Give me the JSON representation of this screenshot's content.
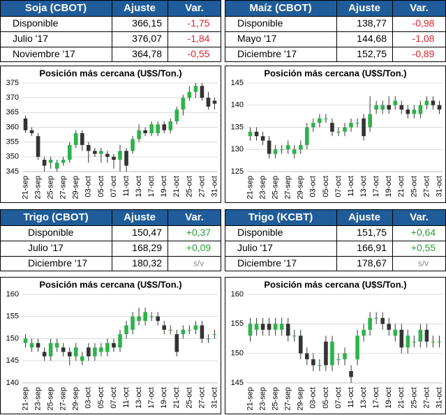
{
  "tables": [
    {
      "header": [
        "Soja (CBOT)",
        "Ajuste",
        "Var."
      ],
      "rows": [
        [
          "Disponible",
          "366,15",
          "-1,75"
        ],
        [
          "Julio '17",
          "376,07",
          "-1,84"
        ],
        [
          "Noviembre '17",
          "364,78",
          "-0,55"
        ]
      ]
    },
    {
      "header": [
        "Maíz (CBOT)",
        "Ajuste",
        "Var."
      ],
      "rows": [
        [
          "Disponible",
          "138,77",
          "-0,98"
        ],
        [
          "Mayo '17",
          "144,68",
          "-1,08"
        ],
        [
          "Diciembre '17",
          "152,75",
          "-0,89"
        ]
      ]
    },
    {
      "header": [
        "Trigo (CBOT)",
        "Ajuste",
        "Var."
      ],
      "rows": [
        [
          "Disponible",
          "150,47",
          "+0,37"
        ],
        [
          "Julio '17",
          "168,29",
          "+0,09"
        ],
        [
          "Diciembre '17",
          "180,32",
          "s/v"
        ]
      ]
    },
    {
      "header": [
        "Trigo (KCBT)",
        "Ajuste",
        "Var."
      ],
      "rows": [
        [
          "Disponible",
          "151,75",
          "+0,64"
        ],
        [
          "Julio '17",
          "166,91",
          "+0,55"
        ],
        [
          "Diciembre '17",
          "178,67",
          "s/v"
        ]
      ]
    }
  ],
  "chart_data": [
    {
      "type": "candlestick",
      "title": "Posición más cercana (U$S/Ton.)",
      "up_color": "#2db34a",
      "down_color": "#333333",
      "grid": true,
      "categories": [
        "21-sep",
        null,
        "23-sep",
        null,
        "25-sep",
        null,
        "27-sep",
        null,
        "29-sep",
        null,
        "03-oct",
        null,
        "05-oct",
        null,
        "07-oct",
        null,
        "11-oct",
        null,
        "13-oct",
        null,
        "17-oct",
        null,
        "19-oct",
        null,
        "21-oct",
        null,
        "25-oct",
        null,
        "27-oct",
        null,
        "31-oct"
      ],
      "open": [
        363,
        359,
        357,
        349,
        348,
        346,
        348,
        349,
        354,
        358,
        354,
        352,
        351,
        351,
        350,
        349,
        352,
        352,
        356,
        359,
        358,
        358,
        361,
        359,
        362,
        366,
        370,
        372,
        374,
        370,
        369
      ],
      "high": [
        364,
        360,
        358,
        350,
        350,
        349,
        350,
        355,
        359,
        359,
        355,
        353,
        353,
        352,
        351,
        354,
        353,
        357,
        361,
        360,
        362,
        362,
        362,
        363,
        367,
        371,
        374,
        375,
        375,
        372,
        370
      ],
      "low": [
        358,
        357,
        349,
        345,
        346,
        345,
        347,
        348,
        353,
        352,
        348,
        350,
        348,
        348,
        346,
        345,
        345,
        351,
        355,
        357,
        357,
        357,
        358,
        358,
        361,
        364,
        369,
        370,
        369,
        366,
        366
      ],
      "close": [
        359,
        358,
        350,
        347,
        349,
        348,
        349,
        354,
        358,
        354,
        352,
        351,
        352,
        350,
        349,
        352,
        347,
        356,
        359,
        358,
        361,
        361,
        359,
        362,
        366,
        370,
        372,
        374,
        370,
        367,
        368
      ],
      "ylim": [
        345,
        375
      ],
      "yticks": [
        345,
        350,
        355,
        360,
        365,
        370,
        375
      ]
    },
    {
      "type": "candlestick",
      "title": "Posición más cercana (U$S/Ton.)",
      "up_color": "#2db34a",
      "down_color": "#333333",
      "grid": true,
      "categories": [
        "21-sep",
        null,
        "23-sep",
        null,
        "25-sep",
        null,
        "27-sep",
        null,
        "29-sep",
        null,
        "03-oct",
        null,
        "05-oct",
        null,
        "07-oct",
        null,
        "11-oct",
        null,
        "13-oct",
        null,
        "17-oct",
        null,
        "19-oct",
        null,
        "21-oct",
        null,
        "25-oct",
        null,
        "27-oct",
        null,
        "31-oct"
      ],
      "open": [
        133,
        134,
        133,
        132,
        129,
        130,
        130,
        129,
        130,
        131,
        135,
        136,
        137,
        136,
        134,
        134,
        135,
        136,
        137,
        135,
        139,
        139,
        140,
        140,
        140,
        139,
        138,
        138,
        140,
        141,
        140
      ],
      "high": [
        135,
        135,
        134,
        133,
        131,
        131,
        132,
        131,
        132,
        136,
        137,
        138,
        138,
        137,
        135,
        136,
        137,
        137,
        138,
        142,
        141,
        141,
        142,
        142,
        141,
        140,
        140,
        141,
        142,
        142,
        141
      ],
      "low": [
        132,
        132,
        131,
        128,
        128,
        129,
        129,
        128,
        129,
        130,
        134,
        135,
        136,
        133,
        133,
        133,
        134,
        135,
        132,
        134,
        138,
        138,
        138,
        139,
        138,
        137,
        137,
        137,
        139,
        139,
        138
      ],
      "close": [
        134,
        133,
        132,
        129,
        130,
        130,
        131,
        130,
        131,
        135,
        136,
        137,
        137,
        134,
        134,
        135,
        136,
        136,
        133,
        138,
        140,
        140,
        139,
        141,
        139,
        138,
        139,
        140,
        141,
        140,
        139
      ],
      "ylim": [
        125,
        145
      ],
      "yticks": [
        125,
        130,
        135,
        140,
        145
      ]
    },
    {
      "type": "candlestick",
      "title": "Posición más cercana (U$S/Ton.)",
      "up_color": "#2db34a",
      "down_color": "#333333",
      "grid": true,
      "categories": [
        "21-sep",
        null,
        "23-sep",
        null,
        "25-sep",
        null,
        "27-sep",
        null,
        "29-sep",
        null,
        "03-oct",
        null,
        "05-oct",
        null,
        "07-oct",
        null,
        "11-oct",
        null,
        "13-oct",
        null,
        "17-oct",
        null,
        "19-oct",
        null,
        "21-oct",
        null,
        "25-oct",
        null,
        "27-oct",
        null,
        "31-oct"
      ],
      "open": [
        149,
        148,
        149,
        147,
        146,
        148,
        148,
        147,
        146,
        145,
        148,
        146,
        147,
        147,
        149,
        148,
        151,
        152,
        154,
        154,
        155,
        155,
        153,
        152,
        151,
        151,
        152,
        152,
        153,
        150,
        151
      ],
      "high": [
        151,
        150,
        150,
        148,
        150,
        150,
        149,
        148,
        149,
        147,
        149,
        149,
        149,
        150,
        150,
        152,
        154,
        156,
        157,
        157,
        156,
        156,
        154,
        153,
        152,
        153,
        153,
        154,
        154,
        151,
        152
      ],
      "low": [
        148,
        147,
        147,
        145,
        145,
        147,
        146,
        144,
        145,
        144,
        145,
        145,
        146,
        146,
        147,
        147,
        150,
        151,
        153,
        153,
        154,
        153,
        151,
        151,
        146,
        150,
        151,
        151,
        149,
        149,
        150
      ],
      "close": [
        150,
        149,
        148,
        146,
        149,
        149,
        147,
        146,
        148,
        146,
        146,
        148,
        148,
        149,
        148,
        151,
        153,
        155,
        155,
        156,
        155,
        154,
        152,
        152,
        147,
        152,
        152,
        153,
        150,
        150,
        151
      ],
      "ylim": [
        140,
        160
      ],
      "yticks": [
        140,
        145,
        150,
        155,
        160
      ]
    },
    {
      "type": "candlestick",
      "title": "Posición más cercana (U$S/Ton.)",
      "up_color": "#2db34a",
      "down_color": "#333333",
      "grid": true,
      "categories": [
        "21-sep",
        null,
        "23-sep",
        null,
        "25-sep",
        null,
        "27-sep",
        null,
        "29-sep",
        null,
        "03-oct",
        null,
        "05-oct",
        null,
        "07-oct",
        null,
        "11-oct",
        null,
        "13-oct",
        null,
        "17-oct",
        null,
        "19-oct",
        null,
        "21-oct",
        null,
        "25-oct",
        null,
        "27-oct",
        null,
        "31-oct"
      ],
      "open": [
        153,
        154,
        155,
        155,
        154,
        154,
        155,
        153,
        153,
        150,
        149,
        148,
        152,
        148,
        149,
        149,
        147,
        149,
        153,
        154,
        156,
        156,
        155,
        153,
        154,
        151,
        152,
        152,
        154,
        152,
        152
      ],
      "high": [
        156,
        156,
        156,
        156,
        156,
        156,
        156,
        154,
        154,
        151,
        150,
        149,
        153,
        153,
        150,
        151,
        148,
        154,
        155,
        157,
        157,
        157,
        156,
        155,
        155,
        154,
        153,
        155,
        155,
        153,
        153
      ],
      "low": [
        152,
        153,
        153,
        153,
        153,
        153,
        152,
        152,
        149,
        148,
        147,
        147,
        147,
        147,
        148,
        148,
        145,
        148,
        152,
        153,
        155,
        154,
        153,
        152,
        150,
        150,
        151,
        151,
        151,
        151,
        151
      ],
      "close": [
        155,
        155,
        154,
        154,
        155,
        155,
        153,
        153,
        150,
        149,
        148,
        148,
        148,
        152,
        149,
        150,
        146,
        153,
        154,
        156,
        156,
        155,
        154,
        154,
        151,
        153,
        152,
        154,
        152,
        152,
        152
      ],
      "ylim": [
        145,
        160
      ],
      "yticks": [
        145,
        150,
        155,
        160
      ]
    }
  ]
}
